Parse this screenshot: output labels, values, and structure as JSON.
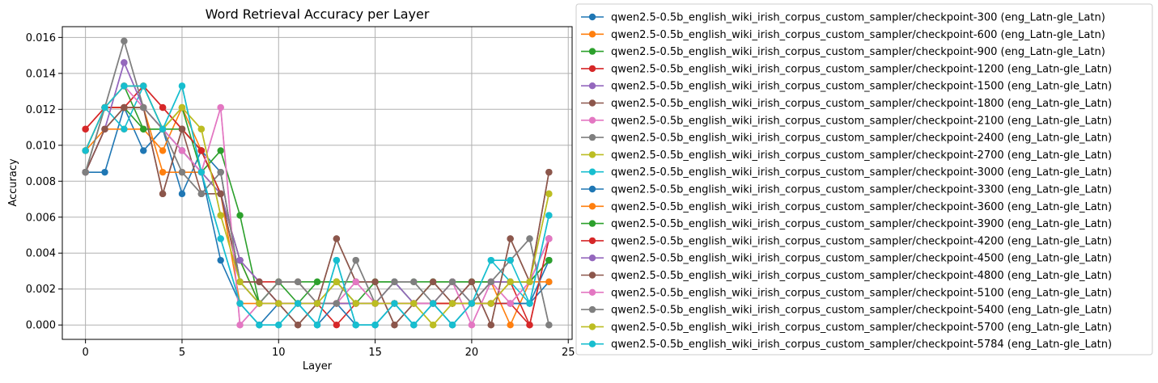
{
  "chart_data": {
    "type": "line",
    "title": "Word Retrieval Accuracy per Layer",
    "xlabel": "Layer",
    "ylabel": "Accuracy",
    "xlim": [
      -1.2,
      25.2
    ],
    "ylim": [
      -0.0008,
      0.0166
    ],
    "x_ticks": [
      0,
      5,
      10,
      15,
      20,
      25
    ],
    "y_ticks": [
      0.0,
      0.002,
      0.004,
      0.006,
      0.008,
      0.01,
      0.012,
      0.014,
      0.016
    ],
    "y_tick_labels": [
      "0.000",
      "0.002",
      "0.004",
      "0.006",
      "0.008",
      "0.010",
      "0.012",
      "0.014",
      "0.016"
    ],
    "grid": true,
    "legend_position": "outside-right",
    "x": [
      0,
      1,
      2,
      3,
      4,
      5,
      6,
      7,
      8,
      9,
      10,
      11,
      12,
      13,
      14,
      15,
      16,
      17,
      18,
      19,
      20,
      21,
      22,
      23,
      24
    ],
    "series": [
      {
        "name": "qwen2.5-0.5b_english_wiki_irish_corpus_custom_sampler/checkpoint-300 (eng_Latn-gle_Latn)",
        "color": "#1f77b4",
        "values": [
          0.0085,
          0.0085,
          0.0121,
          0.0097,
          0.0109,
          0.0073,
          0.0097,
          0.0085,
          0.0024,
          0.0012,
          0.0012,
          0.0012,
          0.0012,
          0.0024,
          0.0012,
          0.0012,
          0.0012,
          0.0012,
          0.0012,
          0.0012,
          0.0012,
          0.0012,
          0.0012,
          0.0012,
          0.0024
        ]
      },
      {
        "name": "qwen2.5-0.5b_english_wiki_irish_corpus_custom_sampler/checkpoint-600 (eng_Latn-gle_Latn)",
        "color": "#ff7f0e",
        "values": [
          0.0097,
          0.0109,
          0.0109,
          0.0109,
          0.0097,
          0.0121,
          0.0097,
          0.0073,
          0.0036,
          0.0012,
          0.0012,
          0.0012,
          0.0012,
          0.0024,
          0.0012,
          0.0012,
          0.0012,
          0.0012,
          0.0012,
          0.0012,
          0.0012,
          0.0024,
          0.0,
          0.0024,
          0.0036
        ]
      },
      {
        "name": "qwen2.5-0.5b_english_wiki_irish_corpus_custom_sampler/checkpoint-900 (eng_Latn-gle_Latn)",
        "color": "#2ca02c",
        "values": [
          0.0085,
          0.0121,
          0.0121,
          0.0109,
          0.0109,
          0.0121,
          0.0085,
          0.0097,
          0.0061,
          0.0012,
          0.0024,
          0.0024,
          0.0024,
          0.0024,
          0.0024,
          0.0024,
          0.0024,
          0.0024,
          0.0024,
          0.0024,
          0.0024,
          0.0024,
          0.0024,
          0.0024,
          0.0036
        ]
      },
      {
        "name": "qwen2.5-0.5b_english_wiki_irish_corpus_custom_sampler/checkpoint-1200 (eng_Latn-gle_Latn)",
        "color": "#d62728",
        "values": [
          0.0109,
          0.0121,
          0.0121,
          0.0133,
          0.0121,
          0.0109,
          0.0097,
          0.0073,
          0.0036,
          0.0024,
          0.0024,
          0.0024,
          0.0012,
          0.0,
          0.0012,
          0.0012,
          0.0012,
          0.0012,
          0.0012,
          0.0012,
          0.0024,
          0.0024,
          0.0024,
          0.0,
          0.0048
        ]
      },
      {
        "name": "qwen2.5-0.5b_english_wiki_irish_corpus_custom_sampler/checkpoint-1500 (eng_Latn-gle_Latn)",
        "color": "#9467bd",
        "values": [
          0.0085,
          0.0109,
          0.0146,
          0.0121,
          0.0109,
          0.0097,
          0.0085,
          0.0073,
          0.0036,
          0.0024,
          0.0012,
          0.0012,
          0.0012,
          0.0012,
          0.0012,
          0.0012,
          0.0024,
          0.0012,
          0.0012,
          0.0024,
          0.0012,
          0.0024,
          0.0024,
          0.0024,
          0.0048
        ]
      },
      {
        "name": "qwen2.5-0.5b_english_wiki_irish_corpus_custom_sampler/checkpoint-1800 (eng_Latn-gle_Latn)",
        "color": "#8c564b",
        "values": [
          0.0085,
          0.0109,
          0.0121,
          0.0121,
          0.0073,
          0.0109,
          0.0097,
          0.0073,
          0.0024,
          0.0024,
          0.0012,
          0.0,
          0.0012,
          0.0048,
          0.0024,
          0.0024,
          0.0,
          0.0012,
          0.0024,
          0.0012,
          0.0024,
          0.0,
          0.0048,
          0.0024,
          0.0085
        ]
      },
      {
        "name": "qwen2.5-0.5b_english_wiki_irish_corpus_custom_sampler/checkpoint-2100 (eng_Latn-gle_Latn)",
        "color": "#e377c2",
        "values": [
          0.0097,
          0.0121,
          0.0133,
          0.0121,
          0.0109,
          0.0097,
          0.0085,
          0.0121,
          0.0,
          0.0012,
          0.0012,
          0.0012,
          0.0012,
          0.0012,
          0.0024,
          0.0012,
          0.0012,
          0.0012,
          0.0012,
          0.0024,
          0.0,
          0.0024,
          0.0012,
          0.0024,
          0.0048
        ]
      },
      {
        "name": "qwen2.5-0.5b_english_wiki_irish_corpus_custom_sampler/checkpoint-2400 (eng_Latn-gle_Latn)",
        "color": "#7f7f7f",
        "values": [
          0.0085,
          0.0121,
          0.0158,
          0.0121,
          0.0109,
          0.0085,
          0.0073,
          0.0085,
          0.0024,
          0.0012,
          0.0024,
          0.0024,
          0.0012,
          0.0012,
          0.0036,
          0.0012,
          0.0024,
          0.0024,
          0.0012,
          0.0024,
          0.0012,
          0.0024,
          0.0036,
          0.0048,
          0.0
        ]
      },
      {
        "name": "qwen2.5-0.5b_english_wiki_irish_corpus_custom_sampler/checkpoint-2700 (eng_Latn-gle_Latn)",
        "color": "#bcbd22",
        "values": [
          0.0097,
          0.0121,
          0.0133,
          0.0133,
          0.0109,
          0.0121,
          0.0109,
          0.0061,
          0.0024,
          0.0012,
          0.0012,
          0.0012,
          0.0012,
          0.0024,
          0.0012,
          0.0012,
          0.0012,
          0.0012,
          0.0,
          0.0012,
          0.0012,
          0.0012,
          0.0024,
          0.0024,
          0.0073
        ]
      },
      {
        "name": "qwen2.5-0.5b_english_wiki_irish_corpus_custom_sampler/checkpoint-3000 (eng_Latn-gle_Latn)",
        "color": "#17becf",
        "values": [
          0.0097,
          0.0121,
          0.0109,
          0.0133,
          0.0109,
          0.0133,
          0.0085,
          0.0048,
          0.0012,
          0.0,
          0.0,
          0.0012,
          0.0,
          0.0036,
          0.0,
          0.0,
          0.0012,
          0.0,
          0.0012,
          0.0,
          0.0012,
          0.0036,
          0.0024,
          0.0012,
          0.0061
        ]
      },
      {
        "name": "qwen2.5-0.5b_english_wiki_irish_corpus_custom_sampler/checkpoint-3300 (eng_Latn-gle_Latn)",
        "color": "#1f77b4",
        "values": [
          0.0097,
          0.0121,
          0.0133,
          0.0133,
          0.0109,
          0.0097,
          0.0085,
          0.0036,
          0.0012,
          0.0,
          0.0012,
          0.0012,
          0.0,
          0.0012,
          0.0,
          0.0,
          0.0012,
          0.0,
          0.0012,
          0.0,
          0.0012,
          0.0012,
          0.0012,
          0.0012,
          0.0036
        ]
      },
      {
        "name": "qwen2.5-0.5b_english_wiki_irish_corpus_custom_sampler/checkpoint-3600 (eng_Latn-gle_Latn)",
        "color": "#ff7f0e",
        "values": [
          0.0097,
          0.0121,
          0.0121,
          0.0121,
          0.0085,
          0.0085,
          0.0085,
          0.0073,
          0.0012,
          0.0012,
          0.0012,
          0.0012,
          0.0012,
          0.0012,
          0.0012,
          0.0012,
          0.0012,
          0.0012,
          0.0012,
          0.0012,
          0.0012,
          0.0012,
          0.0024,
          0.0024,
          0.0024
        ]
      },
      {
        "name": "qwen2.5-0.5b_english_wiki_irish_corpus_custom_sampler/checkpoint-3900 (eng_Latn-gle_Latn)",
        "color": "#2ca02c",
        "values": [
          0.0097,
          0.0121,
          0.0133,
          0.0109,
          0.0109,
          0.0109,
          0.0097,
          0.0073,
          0.0036,
          0.0012,
          0.0024,
          0.0012,
          0.0024,
          0.0024,
          0.0012,
          0.0024,
          0.0024,
          0.0012,
          0.0024,
          0.0024,
          0.0024,
          0.0024,
          0.0024,
          0.0024,
          0.0036
        ]
      },
      {
        "name": "qwen2.5-0.5b_english_wiki_irish_corpus_custom_sampler/checkpoint-4200 (eng_Latn-gle_Latn)",
        "color": "#d62728",
        "values": [
          0.0109,
          0.0121,
          0.0121,
          0.0133,
          0.0121,
          0.0109,
          0.0097,
          0.0073,
          0.0024,
          0.0024,
          0.0012,
          0.0012,
          0.0012,
          0.0012,
          0.0012,
          0.0012,
          0.0012,
          0.0012,
          0.0012,
          0.0012,
          0.0012,
          0.0012,
          0.0012,
          0.0,
          0.0048
        ]
      },
      {
        "name": "qwen2.5-0.5b_english_wiki_irish_corpus_custom_sampler/checkpoint-4500 (eng_Latn-gle_Latn)",
        "color": "#9467bd",
        "values": [
          0.0085,
          0.0109,
          0.0146,
          0.0121,
          0.0109,
          0.0097,
          0.0085,
          0.0073,
          0.0036,
          0.0024,
          0.0012,
          0.0012,
          0.0012,
          0.0012,
          0.0012,
          0.0012,
          0.0024,
          0.0012,
          0.0012,
          0.0024,
          0.0012,
          0.0024,
          0.0024,
          0.0024,
          0.0048
        ]
      },
      {
        "name": "qwen2.5-0.5b_english_wiki_irish_corpus_custom_sampler/checkpoint-4800 (eng_Latn-gle_Latn)",
        "color": "#8c564b",
        "values": [
          0.0085,
          0.0109,
          0.0121,
          0.0121,
          0.0073,
          0.0109,
          0.0073,
          0.0073,
          0.0024,
          0.0024,
          0.0012,
          0.0,
          0.0012,
          0.0048,
          0.0024,
          0.0024,
          0.0,
          0.0012,
          0.0024,
          0.0012,
          0.0024,
          0.0,
          0.0048,
          0.0024,
          0.0085
        ]
      },
      {
        "name": "qwen2.5-0.5b_english_wiki_irish_corpus_custom_sampler/checkpoint-5100 (eng_Latn-gle_Latn)",
        "color": "#e377c2",
        "values": [
          0.0097,
          0.0121,
          0.0133,
          0.0121,
          0.0109,
          0.0097,
          0.0085,
          0.0121,
          0.0,
          0.0012,
          0.0012,
          0.0012,
          0.0012,
          0.0012,
          0.0024,
          0.0012,
          0.0012,
          0.0012,
          0.0012,
          0.0024,
          0.0,
          0.0024,
          0.0012,
          0.0024,
          0.0048
        ]
      },
      {
        "name": "qwen2.5-0.5b_english_wiki_irish_corpus_custom_sampler/checkpoint-5400 (eng_Latn-gle_Latn)",
        "color": "#7f7f7f",
        "values": [
          0.0085,
          0.0121,
          0.0158,
          0.0121,
          0.0109,
          0.0085,
          0.0073,
          0.0085,
          0.0024,
          0.0012,
          0.0024,
          0.0024,
          0.0012,
          0.0012,
          0.0036,
          0.0012,
          0.0024,
          0.0024,
          0.0012,
          0.0024,
          0.0012,
          0.0024,
          0.0036,
          0.0048,
          0.0
        ]
      },
      {
        "name": "qwen2.5-0.5b_english_wiki_irish_corpus_custom_sampler/checkpoint-5700 (eng_Latn-gle_Latn)",
        "color": "#bcbd22",
        "values": [
          0.0097,
          0.0121,
          0.0133,
          0.0133,
          0.0109,
          0.0121,
          0.0109,
          0.0061,
          0.0024,
          0.0012,
          0.0012,
          0.0012,
          0.0012,
          0.0024,
          0.0012,
          0.0012,
          0.0012,
          0.0012,
          0.0,
          0.0012,
          0.0012,
          0.0012,
          0.0024,
          0.0024,
          0.0073
        ]
      },
      {
        "name": "qwen2.5-0.5b_english_wiki_irish_corpus_custom_sampler/checkpoint-5784 (eng_Latn-gle_Latn)",
        "color": "#17becf",
        "values": [
          0.0097,
          0.0121,
          0.0133,
          0.0133,
          0.0109,
          0.0133,
          0.0085,
          0.0048,
          0.0012,
          0.0,
          0.0,
          0.0012,
          0.0,
          0.0036,
          0.0,
          0.0,
          0.0012,
          0.0,
          0.0012,
          0.0,
          0.0012,
          0.0036,
          0.0036,
          0.0012,
          0.0061
        ]
      }
    ]
  }
}
